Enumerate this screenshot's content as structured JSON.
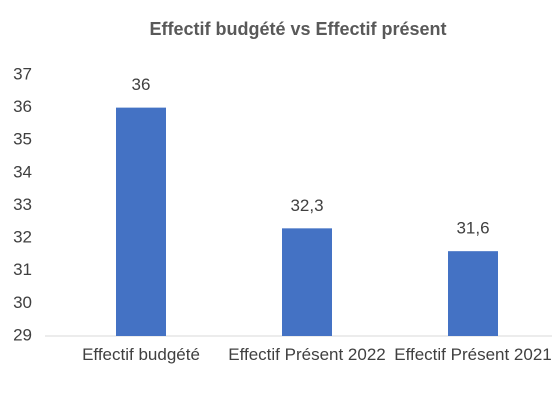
{
  "chart_data": {
    "type": "bar",
    "title": "Effectif budgété vs Effectif présent",
    "categories": [
      "Effectif budgété",
      "Effectif Présent 2022",
      "Effectif Présent 2021"
    ],
    "values": [
      36,
      32.3,
      31.6
    ],
    "value_labels": [
      "36",
      "32,3",
      "31,6"
    ],
    "color": "#4472c4",
    "ylim": [
      29,
      37
    ],
    "yticks": [
      29,
      30,
      31,
      32,
      33,
      34,
      35,
      36,
      37
    ],
    "grid": false
  }
}
